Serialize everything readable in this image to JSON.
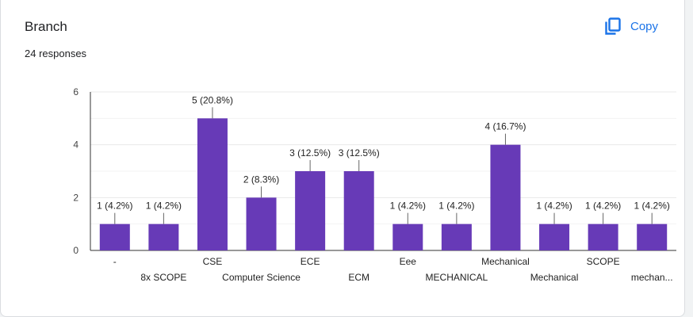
{
  "header": {
    "title": "Branch",
    "responses": "24 responses",
    "copy_label": "Copy",
    "copy_icon": "copy-icon",
    "accent_color": "#1a73e8"
  },
  "chart_data": {
    "type": "bar",
    "title": "",
    "xlabel": "",
    "ylabel": "",
    "ylim": [
      0,
      6
    ],
    "yticks": [
      0,
      2,
      4,
      6
    ],
    "grid": true,
    "bar_color": "#673ab7",
    "categories": [
      "-",
      "8x SCOPE",
      "CSE",
      "Computer Science",
      "ECE",
      "ECM",
      "Eee",
      "MECHANICAL",
      "Mechanical",
      "Mechanical",
      "SCOPE",
      "mechan..."
    ],
    "values": [
      1,
      1,
      5,
      2,
      3,
      3,
      1,
      1,
      4,
      1,
      1,
      1
    ],
    "data_labels": [
      "1 (4.2%)",
      "1 (4.2%)",
      "5 (20.8%)",
      "2 (8.3%)",
      "3 (12.5%)",
      "3 (12.5%)",
      "1 (4.2%)",
      "1 (4.2%)",
      "4 (16.7%)",
      "1 (4.2%)",
      "1 (4.2%)",
      "1 (4.2%)"
    ]
  }
}
